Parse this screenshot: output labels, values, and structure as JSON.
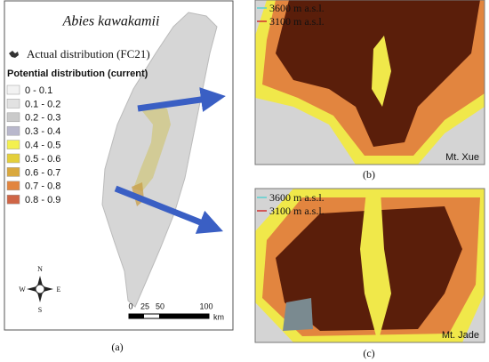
{
  "panel_a": {
    "title": "Abies kawakamii",
    "actual_label": "Actual distribution (FC21)",
    "legend_title": "Potential distribution (current)",
    "legend": [
      {
        "label": "0 - 0.1",
        "color": "#f2f2f2"
      },
      {
        "label": "0.1 - 0.2",
        "color": "#e2e2e2"
      },
      {
        "label": "0.2 - 0.3",
        "color": "#cacaca"
      },
      {
        "label": "0.3 - 0.4",
        "color": "#b9b8cc"
      },
      {
        "label": "0.4 - 0.5",
        "color": "#f3f04f"
      },
      {
        "label": "0.5 - 0.6",
        "color": "#e4cf3a"
      },
      {
        "label": "0.6 - 0.7",
        "color": "#d9a83e"
      },
      {
        "label": "0.7 - 0.8",
        "color": "#e2853f"
      },
      {
        "label": "0.8 - 0.9",
        "color": "#cf6546"
      }
    ],
    "compass": {
      "n": "N",
      "s": "S",
      "w": "W",
      "e": "E"
    },
    "scale_bar": {
      "labels": [
        "0",
        "25",
        "50",
        "100"
      ],
      "unit": "km"
    },
    "caption": "(a)"
  },
  "panel_b": {
    "contours": [
      "3600 m a.s.l.",
      "3100 m a.s.l."
    ],
    "peak": "Mt. Xue",
    "caption": "(b)"
  },
  "panel_c": {
    "contours": [
      "3600 m a.s.l.",
      "3100 m a.s.l."
    ],
    "peak": "Mt. Jade",
    "caption": "(c)"
  }
}
